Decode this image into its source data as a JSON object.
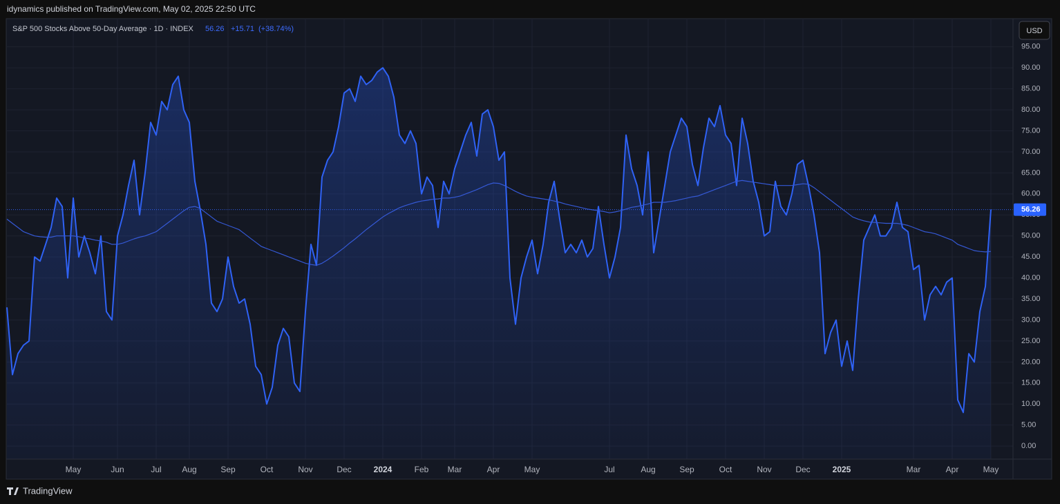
{
  "header": {
    "published": "idynamics published on TradingView.com, May 02, 2025 22:50 UTC",
    "currency": "USD",
    "brand": "TradingView"
  },
  "chart_data": {
    "type": "line",
    "title": "S&P 500 Stocks Above 50-Day Average · 1D · INDEX",
    "last": 56.26,
    "change": {
      "value": 15.71,
      "label": "+15.71"
    },
    "change_pct": {
      "value": 38.74,
      "label": "(+38.74%)"
    },
    "categories": [
      null,
      null,
      null,
      null,
      null,
      null,
      null,
      null,
      null,
      null,
      null,
      null,
      "May",
      null,
      null,
      null,
      null,
      null,
      null,
      null,
      "Jun",
      null,
      null,
      null,
      null,
      null,
      null,
      "Jul",
      null,
      null,
      null,
      null,
      null,
      "Aug",
      null,
      null,
      null,
      null,
      null,
      null,
      "Sep",
      null,
      null,
      null,
      null,
      null,
      null,
      "Oct",
      null,
      null,
      null,
      null,
      null,
      null,
      "Nov",
      null,
      null,
      null,
      null,
      null,
      null,
      "Dec",
      null,
      null,
      null,
      null,
      null,
      null,
      "2024",
      null,
      null,
      null,
      null,
      null,
      null,
      "Feb",
      null,
      null,
      null,
      null,
      null,
      "Mar",
      null,
      null,
      null,
      null,
      null,
      null,
      "Apr",
      null,
      null,
      null,
      null,
      null,
      null,
      "May",
      null,
      null,
      null,
      null,
      null,
      null,
      null,
      null,
      null,
      null,
      null,
      null,
      null,
      "Jul",
      null,
      null,
      null,
      null,
      null,
      null,
      "Aug",
      null,
      null,
      null,
      null,
      null,
      null,
      "Sep",
      null,
      null,
      null,
      null,
      null,
      null,
      "Oct",
      null,
      null,
      null,
      null,
      null,
      null,
      "Nov",
      null,
      null,
      null,
      null,
      null,
      null,
      "Dec",
      null,
      null,
      null,
      null,
      null,
      null,
      "2025",
      null,
      null,
      null,
      null,
      null,
      null,
      null,
      null,
      null,
      null,
      null,
      null,
      "Mar",
      null,
      null,
      null,
      null,
      null,
      null,
      "Apr",
      null,
      null,
      null,
      null,
      null,
      null,
      "May"
    ],
    "series": [
      {
        "name": "S&P 500 Stocks Above 50-Day Average",
        "color": "#2f62f5",
        "values": [
          33,
          17,
          22,
          24,
          25,
          45,
          44,
          48,
          52,
          59,
          57,
          40,
          59,
          45,
          50,
          46,
          41,
          50,
          32,
          30,
          50,
          55,
          62,
          68,
          55,
          65,
          77,
          74,
          82,
          80,
          86,
          88,
          80,
          77,
          63,
          56,
          48,
          34,
          32,
          35,
          45,
          38,
          34,
          35,
          29,
          19,
          17,
          10,
          14,
          24,
          28,
          26,
          15,
          13,
          32,
          48,
          43,
          64,
          68,
          70,
          76,
          84,
          85,
          82,
          88,
          86,
          87,
          89,
          90,
          88,
          83,
          74,
          72,
          75,
          72,
          60,
          64,
          62,
          52,
          63,
          60,
          66,
          70,
          74,
          77,
          69,
          79,
          80,
          76,
          68,
          70,
          40,
          29,
          40,
          45,
          49,
          41,
          48,
          58,
          63,
          54,
          46,
          48,
          46,
          49,
          45,
          47,
          57,
          48,
          40,
          45,
          52,
          74,
          66,
          62,
          55,
          70,
          46,
          54,
          62,
          70,
          74,
          78,
          76,
          67,
          62,
          71,
          78,
          76,
          81,
          74,
          72,
          62,
          78,
          72,
          63,
          58,
          50,
          51,
          63,
          57,
          55,
          60,
          67,
          68,
          62,
          55,
          46,
          22,
          27,
          30,
          19,
          25,
          18,
          35,
          49,
          52,
          55,
          50,
          50,
          52,
          58,
          52,
          51,
          42,
          43,
          30,
          36,
          38,
          36,
          39,
          40,
          11,
          8,
          22,
          20,
          32,
          38,
          56.26
        ]
      },
      {
        "color": "#3559d6",
        "values": [
          54,
          53,
          52,
          51,
          50.5,
          50,
          49.8,
          49.7,
          49.7,
          50,
          50,
          50,
          50,
          49.8,
          49.5,
          49.3,
          49,
          48.8,
          48.5,
          48,
          48,
          48.3,
          48.8,
          49.3,
          49.7,
          50,
          50.5,
          51,
          52,
          53,
          54,
          55,
          56,
          56.8,
          57,
          56.5,
          55.5,
          54.5,
          53.5,
          53,
          52.5,
          52,
          51.5,
          50.5,
          49.5,
          48.5,
          47.5,
          47,
          46.5,
          46,
          45.5,
          45,
          44.5,
          44,
          43.5,
          43.2,
          43,
          43.5,
          44.3,
          45.2,
          46.2,
          47.2,
          48.3,
          49.3,
          50.4,
          51.5,
          52.5,
          53.5,
          54.5,
          55.3,
          56,
          56.7,
          57.2,
          57.6,
          58,
          58.3,
          58.5,
          58.7,
          58.8,
          59,
          59,
          59.2,
          59.5,
          60,
          60.5,
          61,
          61.6,
          62.2,
          62.6,
          62.5,
          62,
          61.3,
          60.6,
          60,
          59.5,
          59.2,
          59,
          58.8,
          58.6,
          58.3,
          58,
          57.6,
          57.3,
          57,
          56.7,
          56.4,
          56.2,
          56,
          55.8,
          55.5,
          55.7,
          56,
          56.4,
          56.8,
          57,
          57.3,
          57.6,
          58,
          58,
          58,
          58.2,
          58.4,
          58.7,
          59,
          59.3,
          59.5,
          60,
          60.5,
          61,
          61.5,
          62,
          62.5,
          63,
          63.2,
          63,
          62.8,
          62.6,
          62.4,
          62.2,
          62,
          62,
          62,
          62,
          62.2,
          62.4,
          62.3,
          61.5,
          60.5,
          59.5,
          58.5,
          57.5,
          56.5,
          55.5,
          54.5,
          54,
          53.6,
          53.3,
          53.2,
          53.1,
          53,
          53,
          53,
          52.8,
          52.5,
          52,
          51.5,
          51,
          50.8,
          50.5,
          50,
          49.5,
          49,
          48,
          47.5,
          47,
          46.5,
          46.3,
          46.2,
          46.3
        ]
      }
    ],
    "ylim": [
      -3.1,
      101.2
    ],
    "yticks": [
      {
        "value": 0,
        "label": "0.00"
      },
      {
        "value": 5,
        "label": "5.00"
      },
      {
        "value": 10,
        "label": "10.00"
      },
      {
        "value": 15,
        "label": "15.00"
      },
      {
        "value": 20,
        "label": "20.00"
      },
      {
        "value": 25,
        "label": "25.00"
      },
      {
        "value": 30,
        "label": "30.00"
      },
      {
        "value": 35,
        "label": "35.00"
      },
      {
        "value": 40,
        "label": "40.00"
      },
      {
        "value": 45,
        "label": "45.00"
      },
      {
        "value": 50,
        "label": "50.00"
      },
      {
        "value": 55,
        "label": "55.00"
      },
      {
        "value": 60,
        "label": "60.00"
      },
      {
        "value": 65,
        "label": "65.00"
      },
      {
        "value": 70,
        "label": "70.00"
      },
      {
        "value": 75,
        "label": "75.00"
      },
      {
        "value": 80,
        "label": "80.00"
      },
      {
        "value": 85,
        "label": "85.00"
      },
      {
        "value": 90,
        "label": "90.00"
      },
      {
        "value": 95,
        "label": "95.00"
      }
    ],
    "grid": true
  }
}
